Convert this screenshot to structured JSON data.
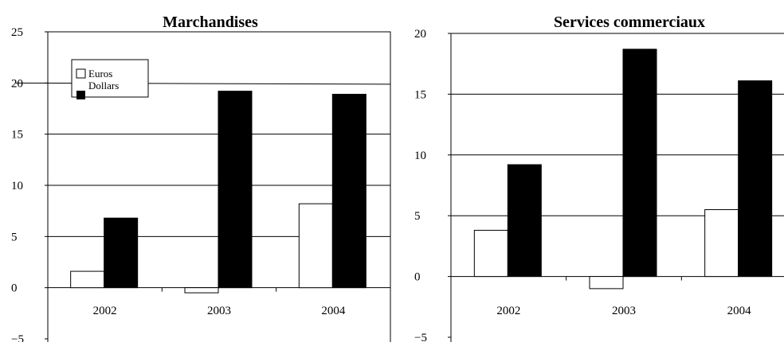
{
  "chart_data": [
    {
      "type": "bar",
      "title": "Marchandises",
      "categories": [
        "2002",
        "2003",
        "2004"
      ],
      "series": [
        {
          "name": "Euros",
          "color": "#ffffff",
          "values": [
            1.6,
            -0.5,
            8.2
          ]
        },
        {
          "name": "Dollars",
          "color": "#000000",
          "values": [
            6.8,
            19.2,
            18.9
          ]
        }
      ],
      "ylim": [
        -5,
        25
      ],
      "yticks": [
        25,
        20,
        15,
        10,
        5,
        0,
        -5
      ],
      "ytick_labels": [
        "25",
        "20",
        "15",
        "10",
        "5",
        "0",
        "−5"
      ],
      "grid": true,
      "legend": "top-left"
    },
    {
      "type": "bar",
      "title": "Services commerciaux",
      "categories": [
        "2002",
        "2003",
        "2004"
      ],
      "series": [
        {
          "name": "Euros",
          "color": "#ffffff",
          "values": [
            3.8,
            -1.0,
            5.5
          ]
        },
        {
          "name": "Dollars",
          "color": "#000000",
          "values": [
            9.2,
            18.7,
            16.1
          ]
        }
      ],
      "ylim": [
        -5,
        20
      ],
      "yticks": [
        20,
        15,
        10,
        5,
        0,
        -5
      ],
      "ytick_labels": [
        "20",
        "15",
        "10",
        "5",
        "0",
        "−5"
      ],
      "grid": true,
      "legend": "none"
    }
  ]
}
